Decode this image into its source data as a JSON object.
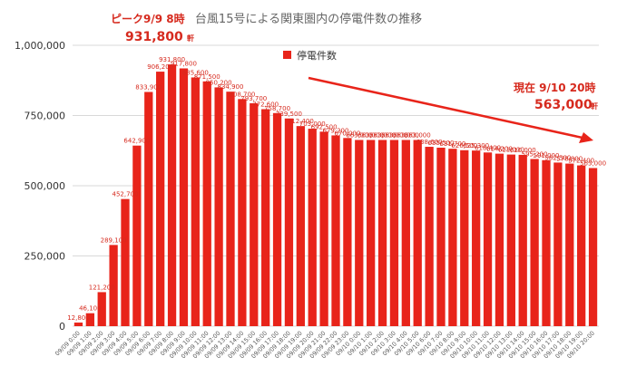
{
  "chart_data": {
    "type": "bar",
    "title": "台風15号による関東圏内の停電件数の推移",
    "series": [
      {
        "name": "停電件数",
        "color": "#e8241a"
      }
    ],
    "ylim": [
      0,
      1000000
    ],
    "yticks": [
      "0",
      "250,000",
      "500,000",
      "750,000",
      "1,000,000"
    ],
    "ytick_values": [
      0,
      250000,
      500000,
      750000,
      1000000
    ],
    "grid": true,
    "legend_position": "top",
    "categories": [
      "09/09 0:00",
      "09/09 1:00",
      "09/09 2:00",
      "09/09 3:00",
      "09/09 4:00",
      "09/09 5:00",
      "09/09 6:00",
      "09/09 7:00",
      "09/09 8:00",
      "09/09 9:00",
      "09/09 10:00",
      "09/09 11:00",
      "09/09 12:00",
      "09/09 13:00",
      "09/09 14:00",
      "09/09 15:00",
      "09/09 16:00",
      "09/09 17:00",
      "09/09 18:00",
      "09/09 19:00",
      "09/09 20:00",
      "09/09 21:00",
      "09/09 22:00",
      "09/09 23:00",
      "09/10 0:00",
      "09/10 1:00",
      "09/10 2:00",
      "09/10 3:00",
      "09/10 4:00",
      "09/10 5:00",
      "09/10 6:00",
      "09/10 7:00",
      "09/10 8:00",
      "09/10 9:00",
      "09/10 10:00",
      "09/10 11:00",
      "09/10 12:00",
      "09/10 13:00",
      "09/10 14:00",
      "09/10 15:00",
      "09/10 16:00",
      "09/10 17:00",
      "09/10 18:00",
      "09/10 19:00",
      "09/10 20:00"
    ],
    "values": [
      12800,
      46100,
      121200,
      289100,
      452700,
      642900,
      833900,
      906200,
      931800,
      917800,
      885600,
      871500,
      850200,
      834900,
      808700,
      793700,
      772600,
      758700,
      739500,
      712400,
      703000,
      692500,
      679200,
      670000,
      663000,
      663000,
      663000,
      663000,
      663000,
      663000,
      638600,
      635500,
      631700,
      626500,
      625300,
      618400,
      614200,
      611000,
      610000,
      595200,
      591000,
      582500,
      578800,
      572400,
      563000
    ],
    "data_labels": [
      "12,800",
      "46,100",
      "121,200",
      "289,100",
      "452,700",
      "642,900",
      "833,900",
      "906,200",
      "931,800",
      "917,800",
      "885,600",
      "871,500",
      "850,200",
      "834,900",
      "808,700",
      "793,700",
      "772,600",
      "758,700",
      "739,500",
      "712,400",
      "703,000",
      "692,500",
      "679,200",
      "670,000",
      "663,000",
      "663,000",
      "663,000",
      "663,000",
      "663,000",
      "663,000",
      "638,600",
      "635,500",
      "631,700",
      "626,500",
      "625,300",
      "618,400",
      "614,200",
      "611,000",
      "610,000",
      "595,200",
      "591,000",
      "582,500",
      "578,800",
      "572,400",
      "563,000"
    ],
    "annotations": {
      "peak_line1": "ピーク9/9 8時",
      "peak_value": "931,800",
      "peak_unit": "軒",
      "now_line1": "現在 9/10 20時",
      "now_value": "563,000",
      "now_unit": "軒"
    },
    "trend_arrow_color": "#e8241a"
  }
}
